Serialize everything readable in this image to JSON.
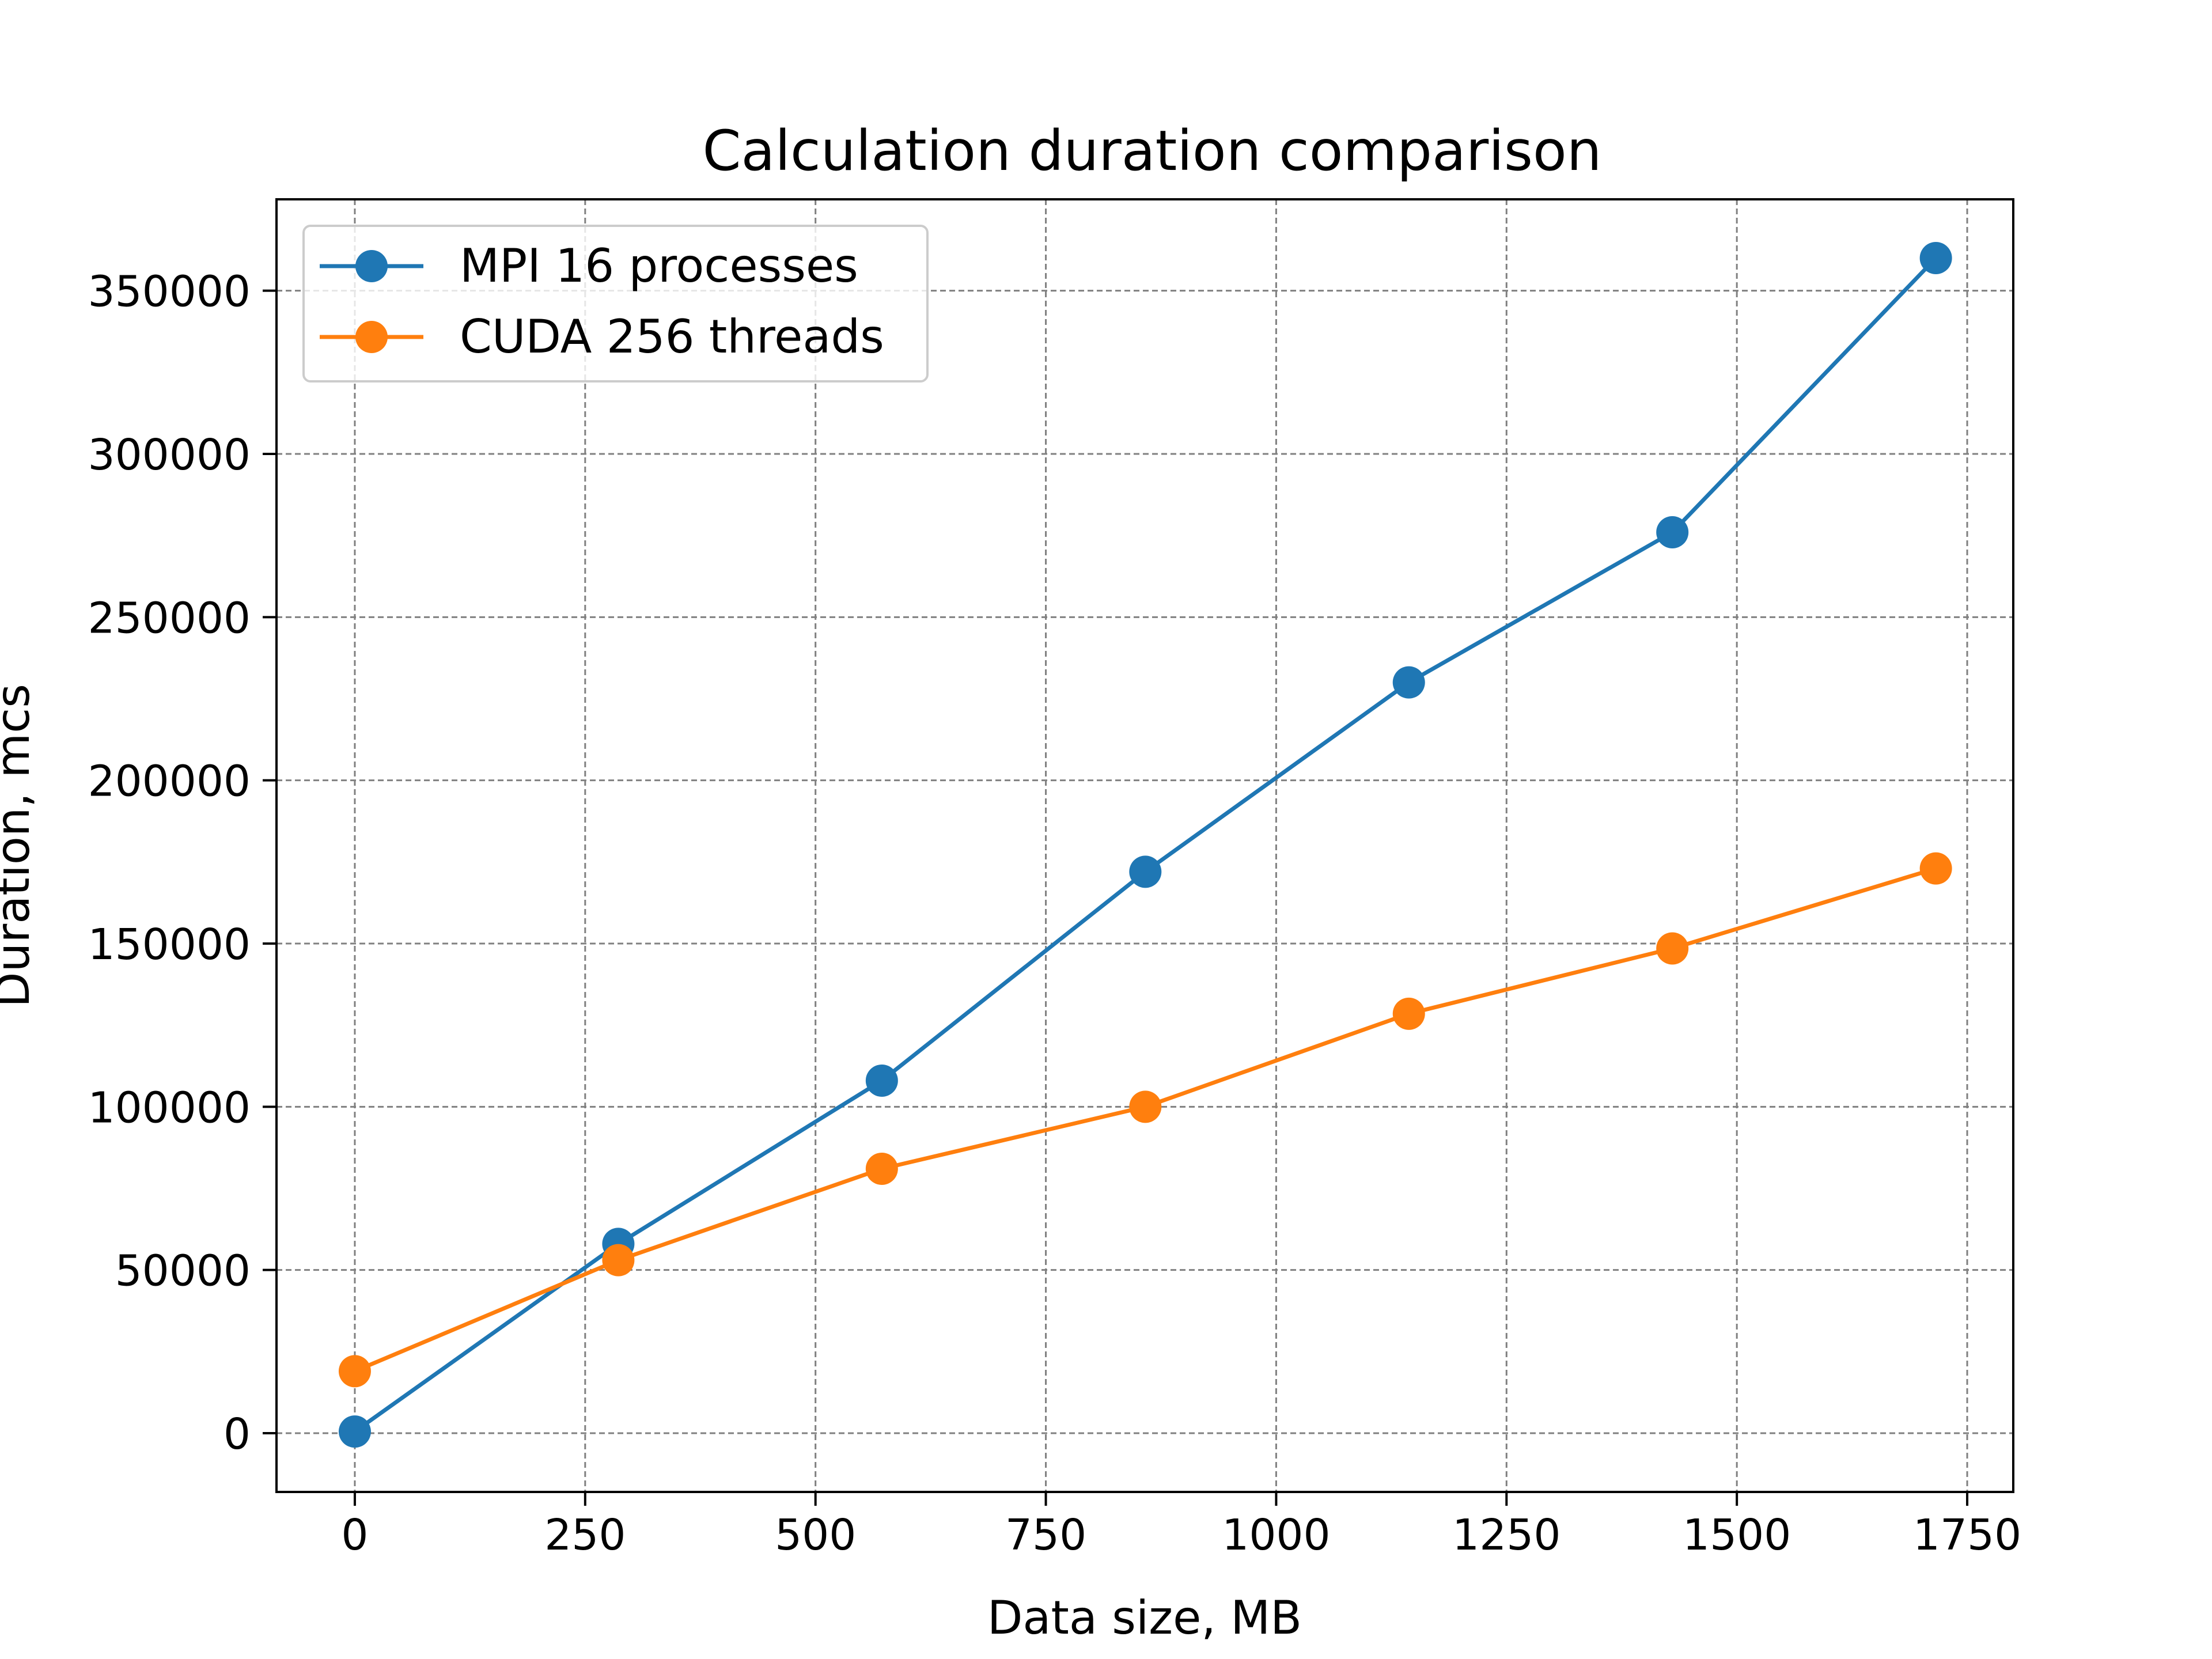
{
  "chart_data": {
    "type": "line",
    "title": "Calculation duration comparison",
    "xlabel": "Data size, MB",
    "ylabel": "Duration, mcs",
    "xlim": [
      -85,
      1800
    ],
    "ylim": [
      -18000,
      378000
    ],
    "xticks": [
      0,
      250,
      500,
      750,
      1000,
      1250,
      1500,
      1750
    ],
    "yticks": [
      0,
      50000,
      100000,
      150000,
      200000,
      250000,
      300000,
      350000
    ],
    "grid": true,
    "legend_position": "upper-left",
    "x": [
      0,
      286,
      572,
      858,
      1144,
      1430,
      1716
    ],
    "series": [
      {
        "name": "MPI 16 processes",
        "color": "#1f77b4",
        "values": [
          500,
          58000,
          108000,
          172000,
          230000,
          276000,
          360000
        ]
      },
      {
        "name": "CUDA 256 threads",
        "color": "#ff7f0e",
        "values": [
          19000,
          53000,
          81000,
          100000,
          128500,
          148500,
          173000
        ]
      }
    ]
  }
}
